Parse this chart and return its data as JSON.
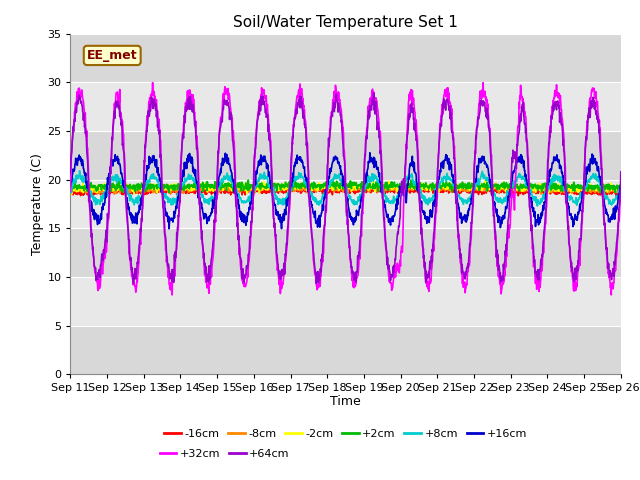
{
  "title": "Soil/Water Temperature Set 1",
  "xlabel": "Time",
  "ylabel": "Temperature (C)",
  "ylim": [
    0,
    35
  ],
  "yticks": [
    0,
    5,
    10,
    15,
    20,
    25,
    30,
    35
  ],
  "xlim": [
    0,
    15
  ],
  "x_labels": [
    "Sep 11",
    "Sep 12",
    "Sep 13",
    "Sep 14",
    "Sep 15",
    "Sep 16",
    "Sep 17",
    "Sep 18",
    "Sep 19",
    "Sep 20",
    "Sep 21",
    "Sep 22",
    "Sep 23",
    "Sep 24",
    "Sep 25",
    "Sep 26"
  ],
  "annotation_text": "EE_met",
  "annotation_box_facecolor": "#ffffcc",
  "annotation_box_edgecolor": "#996600",
  "annotation_text_color": "#800000",
  "bg_color": "#ffffff",
  "plot_bg_bands": [
    [
      0,
      5,
      "#d8d8d8"
    ],
    [
      5,
      10,
      "#e8e8e8"
    ],
    [
      10,
      15,
      "#d8d8d8"
    ],
    [
      15,
      20,
      "#e8e8e8"
    ],
    [
      20,
      25,
      "#d8d8d8"
    ],
    [
      25,
      30,
      "#e8e8e8"
    ],
    [
      30,
      35,
      "#d8d8d8"
    ]
  ],
  "grid_color": "#ffffff",
  "series": [
    {
      "label": "-16cm",
      "color": "#ff0000",
      "lw": 1.2
    },
    {
      "label": "-8cm",
      "color": "#ff8800",
      "lw": 1.2
    },
    {
      "label": "-2cm",
      "color": "#ffff00",
      "lw": 1.2
    },
    {
      "label": "+2cm",
      "color": "#00bb00",
      "lw": 1.2
    },
    {
      "label": "+8cm",
      "color": "#00cccc",
      "lw": 1.2
    },
    {
      "label": "+16cm",
      "color": "#0000cc",
      "lw": 1.2
    },
    {
      "label": "+32cm",
      "color": "#ff00ff",
      "lw": 1.2
    },
    {
      "label": "+64cm",
      "color": "#9900cc",
      "lw": 1.2
    }
  ],
  "legend_ncol_row1": 6,
  "legend_ncol_row2": 2
}
